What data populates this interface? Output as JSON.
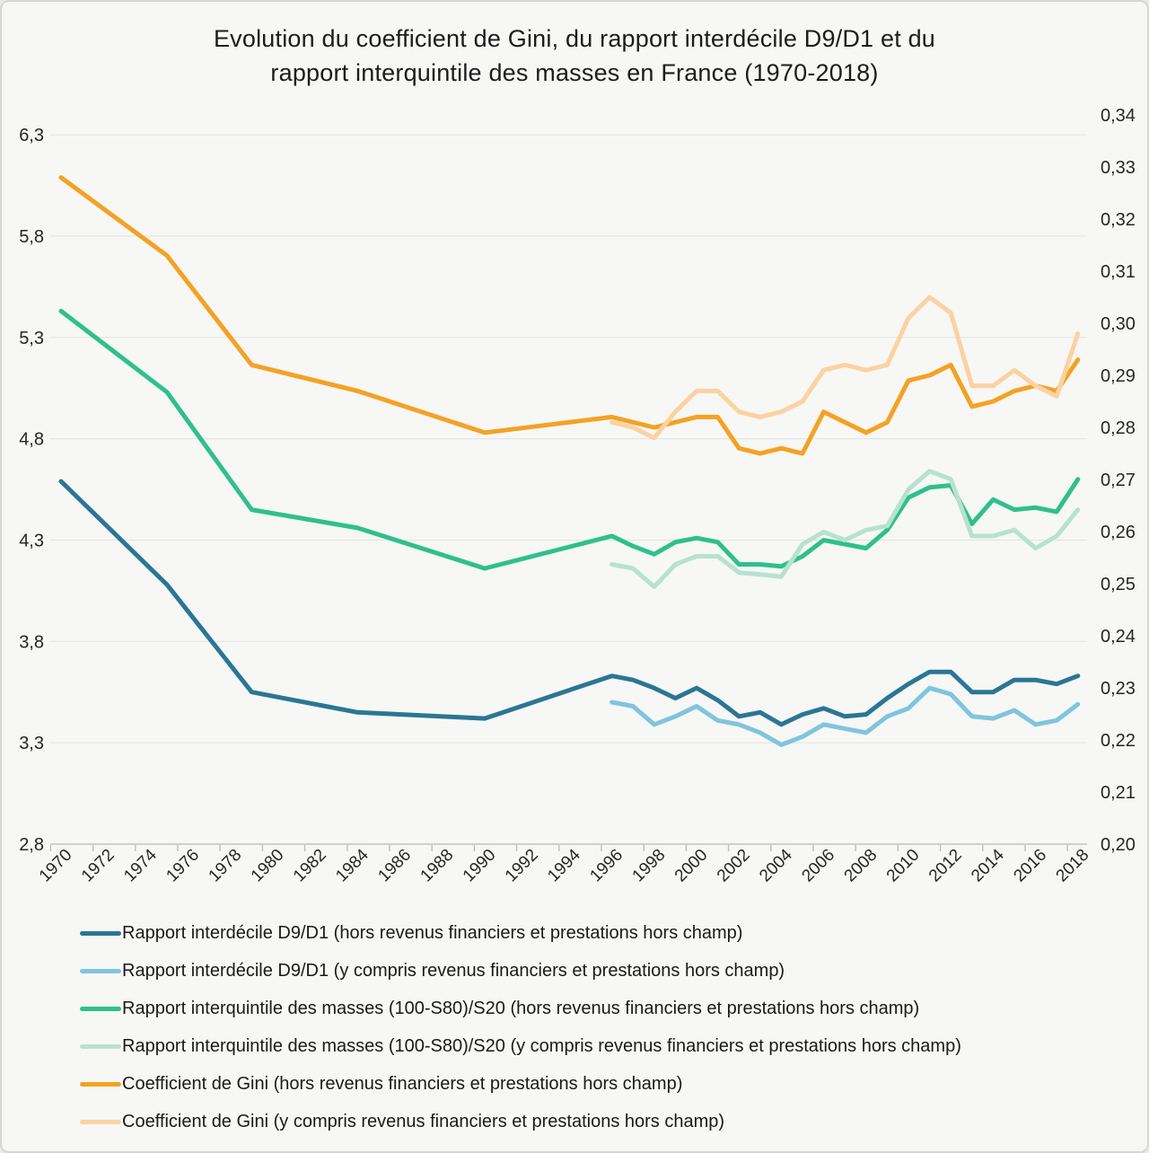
{
  "frame": {
    "background": "#f7f7f6",
    "border_color": "#d6d6d6"
  },
  "title": {
    "line1": "Evolution du coefficient de Gini, du rapport interdécile D9/D1 et du",
    "line2": "rapport interquintile des masses en France (1970-2018)"
  },
  "chart_data": {
    "type": "line",
    "grid": true,
    "legend_position": "bottom-left",
    "axes": {
      "left": {
        "min": 2.8,
        "max": 6.3,
        "tick_values": [
          6.3,
          5.8,
          5.3,
          4.8,
          4.3,
          3.8,
          3.3,
          2.8
        ],
        "tick_labels": [
          "6,3",
          "5,8",
          "5,3",
          "4,8",
          "4,3",
          "3,8",
          "3,3",
          "2,8"
        ]
      },
      "right": {
        "min": 0.2,
        "max": 0.34,
        "tick_values": [
          0.34,
          0.33,
          0.32,
          0.31,
          0.3,
          0.29,
          0.28,
          0.27,
          0.26,
          0.25,
          0.24,
          0.23,
          0.22,
          0.21,
          0.2
        ],
        "tick_labels": [
          "0,34",
          "0,33",
          "0,32",
          "0,31",
          "0,30",
          "0,29",
          "0,28",
          "0,27",
          "0,26",
          "0,25",
          "0,24",
          "0,23",
          "0,22",
          "0,21",
          "0,20"
        ]
      },
      "x": {
        "min": 1970,
        "max": 2018,
        "tick_values": [
          1970,
          1972,
          1974,
          1976,
          1978,
          1980,
          1982,
          1984,
          1986,
          1988,
          1990,
          1992,
          1994,
          1996,
          1998,
          2000,
          2002,
          2004,
          2006,
          2008,
          2010,
          2012,
          2014,
          2016,
          2018
        ],
        "tick_labels": [
          "1970",
          "1972",
          "1974",
          "1976",
          "1978",
          "1980",
          "1982",
          "1984",
          "1986",
          "1988",
          "1990",
          "1992",
          "1994",
          "1996",
          "1998",
          "2000",
          "2002",
          "2004",
          "2006",
          "2008",
          "2010",
          "2012",
          "2014",
          "2016",
          "2018"
        ]
      }
    },
    "series": [
      {
        "id": "d9d1-hors",
        "name": "Rapport interdécile D9/D1 (hors revenus financiers et prestations hors champ)",
        "color": "#2b7694",
        "axis": "left",
        "years": [
          1970,
          1975,
          1979,
          1984,
          1990,
          1996,
          1997,
          1998,
          1999,
          2000,
          2001,
          2002,
          2003,
          2004,
          2005,
          2006,
          2007,
          2008,
          2009,
          2010,
          2011,
          2012,
          2013,
          2014,
          2015,
          2016,
          2017,
          2018
        ],
        "values": [
          4.59,
          4.08,
          3.55,
          3.45,
          3.42,
          3.63,
          3.61,
          3.57,
          3.52,
          3.57,
          3.51,
          3.43,
          3.45,
          3.39,
          3.44,
          3.47,
          3.43,
          3.44,
          3.52,
          3.59,
          3.65,
          3.65,
          3.55,
          3.55,
          3.61,
          3.61,
          3.59,
          3.63
        ]
      },
      {
        "id": "d9d1-yc",
        "name": "Rapport interdécile D9/D1 (y compris revenus financiers et prestations hors champ)",
        "color": "#7fc5dd",
        "axis": "left",
        "years": [
          1996,
          1997,
          1998,
          1999,
          2000,
          2001,
          2002,
          2003,
          2004,
          2005,
          2006,
          2007,
          2008,
          2009,
          2010,
          2011,
          2012,
          2013,
          2014,
          2015,
          2016,
          2017,
          2018
        ],
        "values": [
          3.5,
          3.48,
          3.39,
          3.43,
          3.48,
          3.41,
          3.39,
          3.35,
          3.29,
          3.33,
          3.39,
          3.37,
          3.35,
          3.43,
          3.47,
          3.57,
          3.54,
          3.43,
          3.42,
          3.46,
          3.39,
          3.41,
          3.49
        ]
      },
      {
        "id": "masses-hors",
        "name": "Rapport interquintile des masses (100-S80)/S20 (hors revenus financiers et prestations hors champ)",
        "color": "#2fc08c",
        "axis": "left",
        "years": [
          1970,
          1975,
          1979,
          1984,
          1990,
          1996,
          1997,
          1998,
          1999,
          2000,
          2001,
          2002,
          2003,
          2004,
          2005,
          2006,
          2007,
          2008,
          2009,
          2010,
          2011,
          2012,
          2013,
          2014,
          2015,
          2016,
          2017,
          2018
        ],
        "values": [
          5.43,
          5.03,
          4.45,
          4.36,
          4.16,
          4.32,
          4.27,
          4.23,
          4.29,
          4.31,
          4.29,
          4.18,
          4.18,
          4.17,
          4.22,
          4.3,
          4.28,
          4.26,
          4.35,
          4.51,
          4.56,
          4.57,
          4.38,
          4.5,
          4.45,
          4.46,
          4.44,
          4.6
        ]
      },
      {
        "id": "masses-yc",
        "name": "Rapport interquintile des masses (100-S80)/S20 (y compris revenus financiers et prestations hors champ)",
        "color": "#b7e2cf",
        "axis": "left",
        "years": [
          1996,
          1997,
          1998,
          1999,
          2000,
          2001,
          2002,
          2003,
          2004,
          2005,
          2006,
          2007,
          2008,
          2009,
          2010,
          2011,
          2012,
          2013,
          2014,
          2015,
          2016,
          2017,
          2018
        ],
        "values": [
          4.18,
          4.16,
          4.07,
          4.18,
          4.22,
          4.22,
          4.14,
          4.13,
          4.12,
          4.28,
          4.34,
          4.3,
          4.35,
          4.37,
          4.55,
          4.64,
          4.6,
          4.32,
          4.32,
          4.35,
          4.26,
          4.32,
          4.45
        ]
      },
      {
        "id": "gini-hors",
        "name": "Coefficient de Gini (hors revenus financiers et prestations hors champ)",
        "color": "#f4a224",
        "axis": "right",
        "years": [
          1970,
          1975,
          1979,
          1984,
          1990,
          1996,
          1997,
          1998,
          1999,
          2000,
          2001,
          2002,
          2003,
          2004,
          2005,
          2006,
          2007,
          2008,
          2009,
          2010,
          2011,
          2012,
          2013,
          2014,
          2015,
          2016,
          2017,
          2018
        ],
        "values": [
          0.328,
          0.313,
          0.292,
          0.287,
          0.279,
          0.282,
          0.281,
          0.28,
          0.281,
          0.282,
          0.282,
          0.276,
          0.275,
          0.276,
          0.275,
          0.283,
          0.281,
          0.279,
          0.281,
          0.289,
          0.29,
          0.292,
          0.284,
          0.285,
          0.287,
          0.288,
          0.287,
          0.293
        ]
      },
      {
        "id": "gini-yc",
        "name": "Coefficient de Gini (y compris revenus financiers et prestations hors champ)",
        "color": "#fbd2a2",
        "axis": "right",
        "years": [
          1996,
          1997,
          1998,
          1999,
          2000,
          2001,
          2002,
          2003,
          2004,
          2005,
          2006,
          2007,
          2008,
          2009,
          2010,
          2011,
          2012,
          2013,
          2014,
          2015,
          2016,
          2017,
          2018
        ],
        "values": [
          0.281,
          0.28,
          0.278,
          0.283,
          0.287,
          0.287,
          0.283,
          0.282,
          0.283,
          0.285,
          0.291,
          0.292,
          0.291,
          0.292,
          0.301,
          0.305,
          0.302,
          0.288,
          0.288,
          0.291,
          0.288,
          0.286,
          0.298
        ]
      }
    ],
    "style": {
      "grid_color": "#e3e3e3",
      "axis_color": "#c4c4c4",
      "tick_color": "#bdbdbd",
      "label_color": "#262626",
      "line_width": 5
    }
  }
}
